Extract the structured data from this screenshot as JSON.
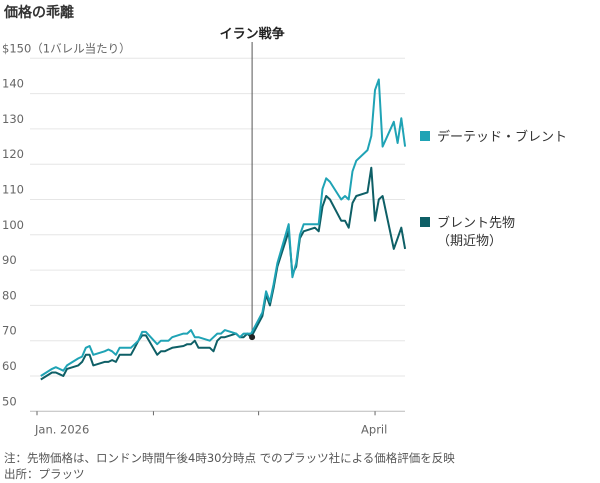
{
  "chart_data": {
    "type": "line",
    "title": "価格の乖離",
    "ylabel": "$150（1バレル当たり）",
    "yticks": [
      50,
      60,
      70,
      80,
      90,
      100,
      110,
      120,
      130,
      140,
      150
    ],
    "ytick_labels": [
      "50",
      "60",
      "70",
      "80",
      "90",
      "100",
      "110",
      "120",
      "130",
      "140",
      "$150（1バレル当たり）"
    ],
    "ylim": [
      50,
      150
    ],
    "xlim": [
      "2026-01-01",
      "2026-04-09"
    ],
    "xticks": [
      {
        "date": "2026-01-01",
        "label": "Jan. 2026"
      },
      {
        "date": "2026-02-01",
        "label": ""
      },
      {
        "date": "2026-03-01",
        "label": ""
      },
      {
        "date": "2026-04-01",
        "label": "April"
      }
    ],
    "grid": true,
    "legend_placement": "right",
    "annotation": {
      "label": "イラン戦争",
      "date": "2026-02-27"
    },
    "x": [
      "2026-01-02",
      "2026-01-05",
      "2026-01-06",
      "2026-01-07",
      "2026-01-08",
      "2026-01-09",
      "2026-01-12",
      "2026-01-13",
      "2026-01-14",
      "2026-01-15",
      "2026-01-16",
      "2026-01-19",
      "2026-01-20",
      "2026-01-21",
      "2026-01-22",
      "2026-01-23",
      "2026-01-26",
      "2026-01-27",
      "2026-01-28",
      "2026-01-29",
      "2026-01-30",
      "2026-02-02",
      "2026-02-03",
      "2026-02-04",
      "2026-02-05",
      "2026-02-06",
      "2026-02-09",
      "2026-02-10",
      "2026-02-11",
      "2026-02-12",
      "2026-02-13",
      "2026-02-16",
      "2026-02-17",
      "2026-02-18",
      "2026-02-19",
      "2026-02-20",
      "2026-02-23",
      "2026-02-24",
      "2026-02-25",
      "2026-02-26",
      "2026-02-27",
      "2026-03-02",
      "2026-03-03",
      "2026-03-04",
      "2026-03-05",
      "2026-03-06",
      "2026-03-09",
      "2026-03-10",
      "2026-03-11",
      "2026-03-12",
      "2026-03-13",
      "2026-03-16",
      "2026-03-17",
      "2026-03-18",
      "2026-03-19",
      "2026-03-20",
      "2026-03-23",
      "2026-03-24",
      "2026-03-25",
      "2026-03-26",
      "2026-03-27",
      "2026-03-30",
      "2026-03-31",
      "2026-04-01",
      "2026-04-02",
      "2026-04-03",
      "2026-04-06",
      "2026-04-07",
      "2026-04-08",
      "2026-04-09"
    ],
    "series": [
      {
        "name": "デーテッド・ブレント",
        "color": "#1fa3b5",
        "values": [
          60,
          62,
          62.5,
          62,
          61.5,
          63,
          65,
          65.5,
          68,
          68.5,
          66,
          67,
          67.5,
          67,
          66,
          68,
          68,
          69,
          70,
          72.5,
          72.5,
          69,
          70,
          70,
          70,
          71,
          72,
          72,
          73,
          71,
          71,
          70,
          71,
          72,
          72,
          73,
          72,
          71,
          72,
          72,
          72,
          78,
          84,
          81,
          86,
          92,
          103,
          88,
          92,
          100,
          103,
          103,
          103,
          113,
          116,
          115,
          110,
          111,
          110,
          118,
          121,
          124,
          128,
          141,
          144,
          125,
          132,
          126,
          133,
          125
        ]
      },
      {
        "name": "ブレント先物",
        "name_line2": "（期近物）",
        "color": "#0e5f66",
        "values": [
          59,
          61,
          61,
          60.5,
          60,
          62,
          63,
          64,
          66,
          66,
          63,
          64,
          64,
          64.5,
          64,
          66,
          66,
          68,
          70,
          71.5,
          71.5,
          66,
          67,
          67,
          67.5,
          68,
          68.5,
          69,
          69,
          70,
          68,
          68,
          67,
          70,
          71,
          71,
          72,
          71,
          71,
          72,
          71,
          77,
          83,
          80,
          85,
          91,
          101,
          89,
          91,
          99,
          101,
          102,
          101,
          108,
          111,
          110,
          104,
          104,
          102,
          109,
          111,
          112,
          119,
          104,
          110,
          111,
          96,
          99,
          102,
          96
        ]
      }
    ]
  },
  "footer": {
    "note": "注：先物価格は、ロンドン時間午後4時30分時点 でのプラッツ社による価格評価を反映",
    "source": "出所：プラッツ"
  }
}
